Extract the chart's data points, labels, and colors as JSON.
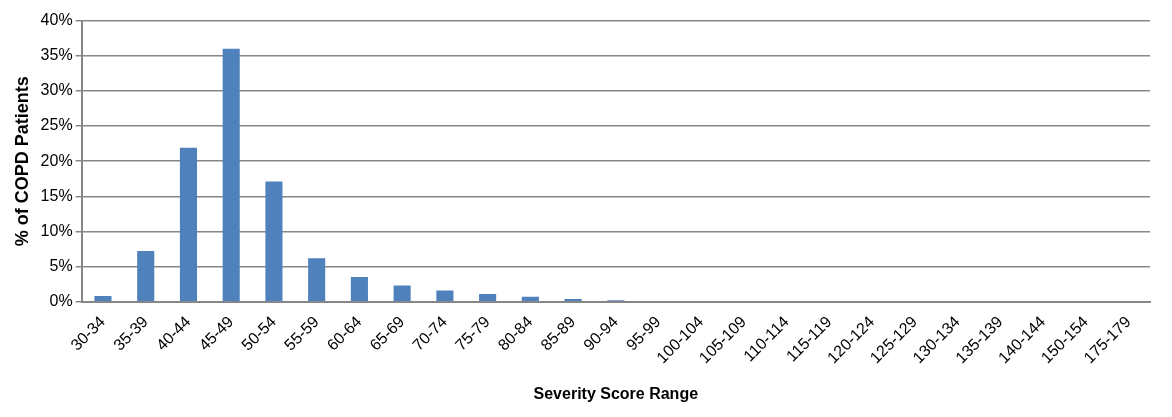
{
  "chart_data": {
    "type": "bar",
    "xlabel": "Severity Score Range",
    "ylabel": "% of COPD Patients",
    "categories": [
      "30-34",
      "35-39",
      "40-44",
      "45-49",
      "50-54",
      "55-59",
      "60-64",
      "65-69",
      "70-74",
      "75-79",
      "80-84",
      "85-89",
      "90-94",
      "95-99",
      "100-104",
      "105-109",
      "110-114",
      "115-119",
      "120-124",
      "125-129",
      "130-134",
      "135-139",
      "140-144",
      "150-154",
      "175-179"
    ],
    "values": [
      0.8,
      7.2,
      21.9,
      36,
      17.1,
      6.2,
      3.5,
      2.3,
      1.6,
      1.1,
      0.7,
      0.4,
      0.2,
      0,
      0,
      0,
      0,
      0,
      0,
      0,
      0,
      0,
      0,
      0,
      0
    ],
    "color": "#4f81bd",
    "ylim": [
      0,
      40
    ],
    "yticks": [
      {
        "value": 0,
        "label": "0%"
      },
      {
        "value": 5,
        "label": "5%"
      },
      {
        "value": 10,
        "label": "10%"
      },
      {
        "value": 15,
        "label": "15%"
      },
      {
        "value": 20,
        "label": "20%"
      },
      {
        "value": 25,
        "label": "25%"
      },
      {
        "value": 30,
        "label": "30%"
      },
      {
        "value": 35,
        "label": "35%"
      },
      {
        "value": 40,
        "label": "40%"
      }
    ],
    "grid": "y"
  }
}
